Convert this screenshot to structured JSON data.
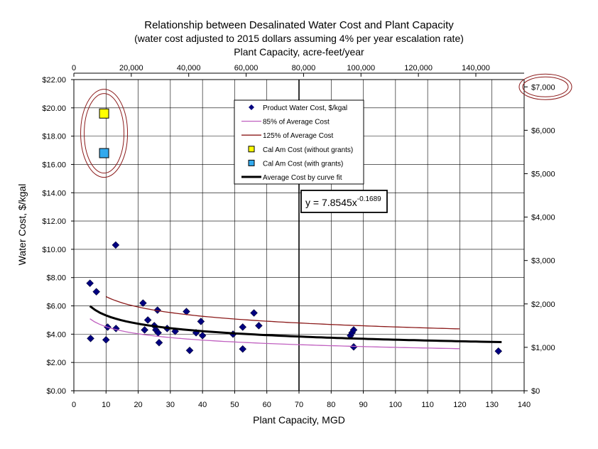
{
  "chart_data": {
    "type": "scatter",
    "title": "Relationship between Desalinated Water Cost and Plant Capacity",
    "subtitle": "(water cost adjusted to 2015 dollars assuming 4% per year escalation rate)",
    "xlabel": "Plant Capacity, MGD",
    "ylabel": "Water Cost, $/kgal",
    "x2label": "Plant Capacity, acre-feet/year",
    "xlim": [
      0,
      140
    ],
    "ylim": [
      0,
      22
    ],
    "x2lim": [
      0,
      156823
    ],
    "y2lim": [
      0,
      7168
    ],
    "x_ticks": [
      "0",
      "10",
      "20",
      "30",
      "40",
      "50",
      "60",
      "70",
      "80",
      "90",
      "100",
      "110",
      "120",
      "130",
      "140"
    ],
    "y_ticks": [
      "$0.00",
      "$2.00",
      "$4.00",
      "$6.00",
      "$8.00",
      "$10.00",
      "$12.00",
      "$14.00",
      "$16.00",
      "$18.00",
      "$20.00",
      "$22.00"
    ],
    "x2_ticks": [
      {
        "value": 0,
        "label": "0"
      },
      {
        "value": 20000,
        "label": "20,000"
      },
      {
        "value": 40000,
        "label": "40,000"
      },
      {
        "value": 60000,
        "label": "60,000"
      },
      {
        "value": 80000,
        "label": "80,000"
      },
      {
        "value": 100000,
        "label": "100,000"
      },
      {
        "value": 120000,
        "label": "120,000"
      },
      {
        "value": 140000,
        "label": "140,000"
      }
    ],
    "y2_ticks": [
      {
        "value": 0,
        "label": "$0"
      },
      {
        "value": 1000,
        "label": "$1,000"
      },
      {
        "value": 2000,
        "label": "$2,000"
      },
      {
        "value": 3000,
        "label": "$3,000"
      },
      {
        "value": 4000,
        "label": "$4,000"
      },
      {
        "value": 5000,
        "label": "$5,000"
      },
      {
        "value": 6000,
        "label": "$6,000"
      },
      {
        "value": 7000,
        "label": "$7,000"
      }
    ],
    "grid": true,
    "legend_position": "top-center",
    "series": [
      {
        "name": "Product Water Cost, $/kgal",
        "kind": "points",
        "marker": "diamond",
        "color": "#00007f",
        "points": [
          [
            5,
            7.6
          ],
          [
            5.2,
            3.7
          ],
          [
            7,
            7.0
          ],
          [
            10,
            3.6
          ],
          [
            10.5,
            4.5
          ],
          [
            13,
            10.3
          ],
          [
            13.1,
            4.4
          ],
          [
            21.5,
            6.2
          ],
          [
            22,
            4.3
          ],
          [
            23,
            5.0
          ],
          [
            25,
            4.6
          ],
          [
            25.5,
            4.3
          ],
          [
            26,
            5.7
          ],
          [
            26.2,
            4.1
          ],
          [
            26.5,
            3.4
          ],
          [
            29,
            4.4
          ],
          [
            31.5,
            4.2
          ],
          [
            35,
            5.6
          ],
          [
            36,
            2.85
          ],
          [
            38,
            4.1
          ],
          [
            39.5,
            4.9
          ],
          [
            40,
            3.9
          ],
          [
            49.5,
            4.0
          ],
          [
            52.5,
            4.5
          ],
          [
            52.5,
            2.95
          ],
          [
            56,
            5.5
          ],
          [
            57.5,
            4.6
          ],
          [
            86,
            3.9
          ],
          [
            86.5,
            4.1
          ],
          [
            87,
            4.3
          ],
          [
            87,
            3.1
          ],
          [
            132,
            2.8
          ]
        ]
      },
      {
        "name": "85% of Average Cost",
        "kind": "curve",
        "color": "#c060c0",
        "coef": 6.6763,
        "exp": -0.1689,
        "xrange": [
          5,
          120
        ]
      },
      {
        "name": "125% of Average Cost",
        "kind": "curve",
        "color": "#8b1a1a",
        "coef": 9.8181,
        "exp": -0.1689,
        "xrange": [
          10,
          120
        ]
      },
      {
        "name": "Cal Am Cost (without grants)",
        "kind": "points",
        "marker": "square",
        "color": "#ffff00",
        "points": [
          [
            9.4,
            19.6
          ]
        ]
      },
      {
        "name": "Cal Am Cost (with grants)",
        "kind": "points",
        "marker": "square",
        "color": "#33aaee",
        "points": [
          [
            9.4,
            16.8
          ]
        ]
      },
      {
        "name": "Average Cost by curve fit",
        "kind": "curve",
        "color": "#000000",
        "coef": 7.8545,
        "exp": -0.1689,
        "xrange": [
          5,
          133
        ]
      }
    ],
    "annotation": {
      "base": "y = 7.8545x",
      "exponent": "-0.1689"
    },
    "highlight_y2_label": "$7,000"
  }
}
